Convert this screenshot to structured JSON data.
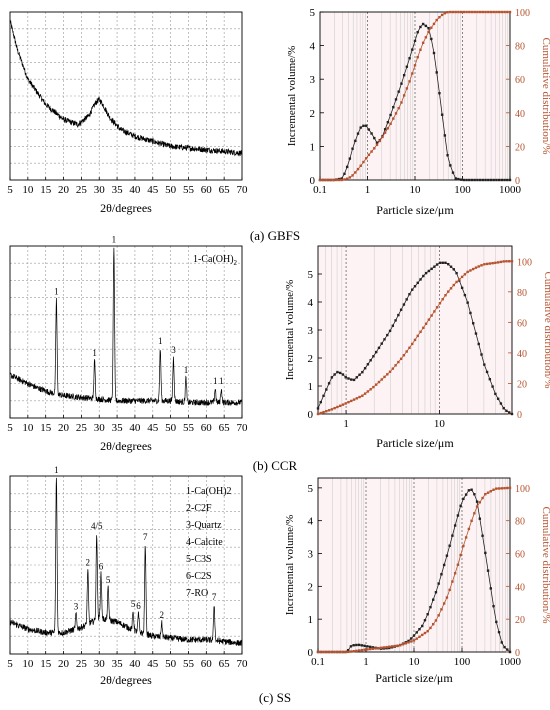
{
  "captions": [
    "(a) GBFS",
    "(b) CCR",
    "(c) SS"
  ],
  "axis_text": {
    "xrd_xlabel": "2θ/degrees",
    "psd_xlabel": "Particle size/μm",
    "psd_ylabel_left": "Incremental volume/%",
    "psd_ylabel_right": "Cumulative distribution/%"
  },
  "colors": {
    "incremental": "#222222",
    "cumulative": "#b5532f",
    "xrd": "#000000",
    "grid": "#999999"
  },
  "chart_data": [
    {
      "id": "a-xrd",
      "type": "line",
      "panel": "(a) GBFS",
      "xlabel": "2θ/degrees",
      "xlim": [
        5,
        70
      ],
      "xticks": [
        5,
        10,
        15,
        20,
        25,
        30,
        35,
        40,
        45,
        50,
        55,
        60,
        65,
        70
      ],
      "y_ticks_shown": false,
      "grid": true,
      "x": [
        5,
        7,
        10,
        15,
        20,
        24,
        27,
        29,
        30,
        31,
        33,
        36,
        40,
        45,
        50,
        55,
        60,
        65,
        70
      ],
      "y": [
        0.95,
        0.78,
        0.6,
        0.45,
        0.36,
        0.33,
        0.38,
        0.46,
        0.48,
        0.45,
        0.37,
        0.3,
        0.26,
        0.23,
        0.2,
        0.19,
        0.18,
        0.17,
        0.16
      ],
      "peaks": []
    },
    {
      "id": "a-psd",
      "type": "line",
      "panel": "(a) GBFS",
      "xscale": "log",
      "xlim": [
        0.1,
        1000
      ],
      "xticks": [
        0.1,
        1,
        10,
        100,
        1000
      ],
      "ylim_left": [
        0,
        5
      ],
      "yticks_left": [
        0,
        1,
        2,
        3,
        4,
        5
      ],
      "ylim_right": [
        0,
        100
      ],
      "yticks_right": [
        0,
        20,
        40,
        60,
        80,
        100
      ],
      "xlabel": "Particle size/μm",
      "ylabel_left": "Incremental volume/%",
      "ylabel_right": "Cumulative distribution/%",
      "series": [
        {
          "axis": "left",
          "x": [
            0.1,
            0.2,
            0.3,
            0.4,
            0.5,
            0.7,
            0.9,
            1.2,
            1.6,
            2,
            3,
            5,
            8,
            12,
            15,
            20,
            25,
            30,
            40,
            50,
            70,
            100,
            200,
            500,
            1000
          ],
          "y": [
            0,
            0,
            0.05,
            0.5,
            1.0,
            1.55,
            1.65,
            1.4,
            1.1,
            1.25,
            1.9,
            2.8,
            3.7,
            4.5,
            4.65,
            4.5,
            3.8,
            3.0,
            1.6,
            0.6,
            0.05,
            0,
            0,
            0,
            0
          ]
        },
        {
          "axis": "right",
          "x": [
            0.1,
            0.3,
            0.4,
            0.5,
            0.7,
            1,
            1.5,
            2,
            3,
            5,
            8,
            12,
            15,
            20,
            30,
            40,
            50,
            70,
            100,
            1000
          ],
          "y": [
            0,
            0,
            1,
            3,
            8,
            14,
            20,
            25,
            33,
            45,
            60,
            75,
            82,
            89,
            96,
            99,
            100,
            100,
            100,
            100
          ]
        }
      ]
    },
    {
      "id": "b-xrd",
      "type": "line",
      "panel": "(b) CCR",
      "xlabel": "2θ/degrees",
      "xlim": [
        5,
        70
      ],
      "xticks": [
        5,
        10,
        15,
        20,
        25,
        30,
        35,
        40,
        45,
        50,
        55,
        60,
        65,
        70
      ],
      "y_ticks_shown": false,
      "grid": true,
      "x": [
        5,
        8,
        12,
        16,
        20,
        25,
        30,
        35,
        40,
        45,
        50,
        55,
        60,
        65,
        70
      ],
      "y": [
        0.25,
        0.22,
        0.18,
        0.15,
        0.13,
        0.12,
        0.11,
        0.1,
        0.1,
        0.1,
        0.1,
        0.09,
        0.09,
        0.09,
        0.09
      ],
      "peaks": [
        {
          "x": 18,
          "h": 0.55,
          "label": "1"
        },
        {
          "x": 28.7,
          "h": 0.22,
          "label": "1"
        },
        {
          "x": 34.1,
          "h": 0.9,
          "label": "1"
        },
        {
          "x": 47.1,
          "h": 0.3,
          "label": "1"
        },
        {
          "x": 50.8,
          "h": 0.25,
          "label": "3"
        },
        {
          "x": 54.3,
          "h": 0.14,
          "label": "1"
        },
        {
          "x": 62.5,
          "h": 0.08,
          "label": "1"
        },
        {
          "x": 64.2,
          "h": 0.08,
          "label": "1"
        }
      ],
      "legend": [
        "1-Ca(OH)",
        "2"
      ]
    },
    {
      "id": "b-psd",
      "type": "line",
      "panel": "(b) CCR",
      "xscale": "log",
      "xlim": [
        0.5,
        60
      ],
      "xticks": [
        1,
        10
      ],
      "ylim_left": [
        0,
        6
      ],
      "yticks_left": [
        0,
        1,
        2,
        3,
        4,
        5
      ],
      "ylim_right": [
        0,
        110
      ],
      "yticks_right": [
        0,
        20,
        40,
        60,
        80,
        100
      ],
      "xlabel": "Particle size/μm",
      "ylabel_left": "Incremental volume/%",
      "ylabel_right": "Cumulative distribution/%",
      "series": [
        {
          "axis": "left",
          "x": [
            0.5,
            0.6,
            0.7,
            0.8,
            0.9,
            1,
            1.2,
            1.5,
            2,
            3,
            4,
            5,
            7,
            10,
            12,
            15,
            20,
            25,
            30,
            40,
            50,
            60
          ],
          "y": [
            0.2,
            0.8,
            1.3,
            1.5,
            1.45,
            1.3,
            1.2,
            1.5,
            2.1,
            3.0,
            3.8,
            4.4,
            5.0,
            5.4,
            5.4,
            5.1,
            4.0,
            2.8,
            1.8,
            0.7,
            0.15,
            0
          ]
        },
        {
          "axis": "right",
          "x": [
            0.5,
            0.7,
            1,
            1.5,
            2,
            3,
            4,
            5,
            7,
            10,
            12,
            15,
            20,
            25,
            30,
            40,
            50,
            60
          ],
          "y": [
            0,
            3,
            7,
            12,
            18,
            28,
            37,
            45,
            58,
            72,
            79,
            86,
            93,
            96,
            98,
            99,
            100,
            100
          ]
        }
      ]
    },
    {
      "id": "c-xrd",
      "type": "line",
      "panel": "(c) SS",
      "xlabel": "2θ/degrees",
      "xlim": [
        5,
        70
      ],
      "xticks": [
        5,
        10,
        15,
        20,
        25,
        30,
        35,
        40,
        45,
        50,
        55,
        60,
        65,
        70
      ],
      "y_ticks_shown": false,
      "grid": true,
      "x": [
        5,
        10,
        15,
        20,
        25,
        30,
        35,
        40,
        45,
        50,
        55,
        60,
        65,
        70
      ],
      "y": [
        0.18,
        0.14,
        0.12,
        0.12,
        0.15,
        0.2,
        0.18,
        0.13,
        0.1,
        0.09,
        0.08,
        0.08,
        0.07,
        0.06
      ],
      "peaks": [
        {
          "x": 18,
          "h": 0.88,
          "label": "1"
        },
        {
          "x": 23.5,
          "h": 0.08,
          "label": "3"
        },
        {
          "x": 26.8,
          "h": 0.3,
          "label": "2"
        },
        {
          "x": 29.3,
          "h": 0.48,
          "label": "4/5"
        },
        {
          "x": 30.5,
          "h": 0.25,
          "label": "6"
        },
        {
          "x": 32.5,
          "h": 0.18,
          "label": "5"
        },
        {
          "x": 39.5,
          "h": 0.1,
          "label": "5"
        },
        {
          "x": 41.0,
          "h": 0.1,
          "label": "6"
        },
        {
          "x": 42.9,
          "h": 0.5,
          "label": "7"
        },
        {
          "x": 47.5,
          "h": 0.08,
          "label": "2"
        },
        {
          "x": 62.2,
          "h": 0.2,
          "label": "7"
        }
      ],
      "legend": [
        "1-Ca(OH)2",
        "2-C2F",
        "3-Quartz",
        "4-Calcite",
        "5-C3S",
        "6-C2S",
        "7-RO"
      ]
    },
    {
      "id": "c-psd",
      "type": "line",
      "panel": "(c) SS",
      "xscale": "log",
      "xlim": [
        0.1,
        1000
      ],
      "xticks": [
        0.1,
        1,
        10,
        100,
        1000
      ],
      "ylim_left": [
        0,
        5.3
      ],
      "yticks_left": [
        0,
        1,
        2,
        3,
        4,
        5
      ],
      "ylim_right": [
        0,
        106
      ],
      "yticks_right": [
        0,
        20,
        40,
        60,
        80,
        100
      ],
      "xlabel": "Particle size/μm",
      "ylabel_left": "Incremental volume/%",
      "ylabel_right": "Cumulative distribution/%",
      "series": [
        {
          "axis": "left",
          "x": [
            0.1,
            0.4,
            0.5,
            0.7,
            1,
            2,
            3,
            5,
            8,
            10,
            15,
            20,
            30,
            50,
            80,
            100,
            150,
            200,
            300,
            500,
            700,
            1000
          ],
          "y": [
            0,
            0,
            0.2,
            0.22,
            0.18,
            0.1,
            0.12,
            0.2,
            0.35,
            0.5,
            0.8,
            1.2,
            1.9,
            3.0,
            4.1,
            4.6,
            5.0,
            4.7,
            3.1,
            1.0,
            0.2,
            0
          ]
        },
        {
          "axis": "right",
          "x": [
            0.1,
            0.4,
            0.5,
            1,
            2,
            5,
            10,
            20,
            30,
            50,
            80,
            100,
            150,
            200,
            300,
            500,
            1000
          ],
          "y": [
            0,
            0,
            0.3,
            1.5,
            2.5,
            4,
            7,
            13,
            20,
            34,
            52,
            62,
            78,
            88,
            96,
            99.5,
            100
          ]
        }
      ]
    }
  ]
}
